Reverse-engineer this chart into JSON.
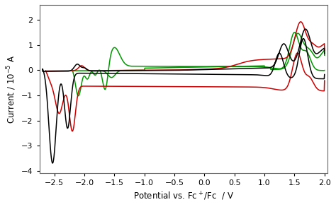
{
  "xlim": [
    -2.75,
    2.05
  ],
  "ylim": [
    -4.1,
    2.6
  ],
  "yticks": [
    -4,
    -3,
    -2,
    -1,
    0,
    1,
    2
  ],
  "xticks": [
    -2.5,
    -2.0,
    -1.5,
    -1.0,
    -0.5,
    0.0,
    0.5,
    1.0,
    1.5,
    2.0
  ],
  "colors": {
    "black": "#000000",
    "red": "#cc0000",
    "green": "#009900"
  },
  "linewidth": 1.1,
  "background": "#ffffff"
}
